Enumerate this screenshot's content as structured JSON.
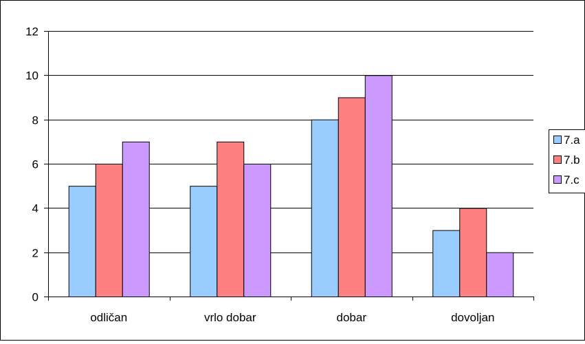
{
  "chart_data": {
    "type": "bar",
    "title": "",
    "xlabel": "",
    "ylabel": "",
    "categories": [
      "odličan",
      "vrlo dobar",
      "dobar",
      "dovoljan"
    ],
    "series": [
      {
        "name": "7.a",
        "values": [
          5,
          5,
          8,
          3
        ],
        "color": "#99ccff"
      },
      {
        "name": "7.b",
        "values": [
          6,
          7,
          9,
          4
        ],
        "color": "#ff8080"
      },
      {
        "name": "7.c",
        "values": [
          7,
          6,
          10,
          2
        ],
        "color": "#cc99ff"
      }
    ],
    "ylim": [
      0,
      12
    ],
    "yticks": [
      0,
      2,
      4,
      6,
      8,
      10,
      12
    ],
    "grid": true,
    "legend_position": "right"
  }
}
